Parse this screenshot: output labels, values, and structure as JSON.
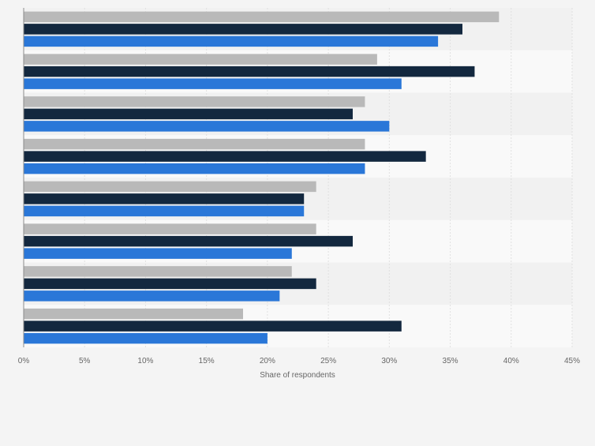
{
  "chart_data": {
    "type": "bar",
    "orientation": "horizontal",
    "title": "",
    "xlabel": "Share of respondents",
    "ylabel": "",
    "xlim": [
      0,
      45
    ],
    "ticks": [
      0,
      5,
      10,
      15,
      20,
      25,
      30,
      35,
      40,
      45
    ],
    "tick_labels": [
      "0%",
      "5%",
      "10%",
      "15%",
      "20%",
      "25%",
      "30%",
      "35%",
      "40%",
      "45%"
    ],
    "grid": true,
    "legend": "none",
    "categories": [
      "",
      "",
      "",
      "",
      "",
      "",
      "",
      ""
    ],
    "series": [
      {
        "color": "#b9b9b9",
        "values": [
          39,
          29,
          28,
          28,
          24,
          24,
          22,
          18
        ]
      },
      {
        "color": "#13283f",
        "values": [
          36,
          37,
          27,
          33,
          23,
          27,
          24,
          31
        ]
      },
      {
        "color": "#2a77d8",
        "values": [
          34,
          31,
          30,
          28,
          23,
          22,
          21,
          20
        ]
      }
    ]
  }
}
